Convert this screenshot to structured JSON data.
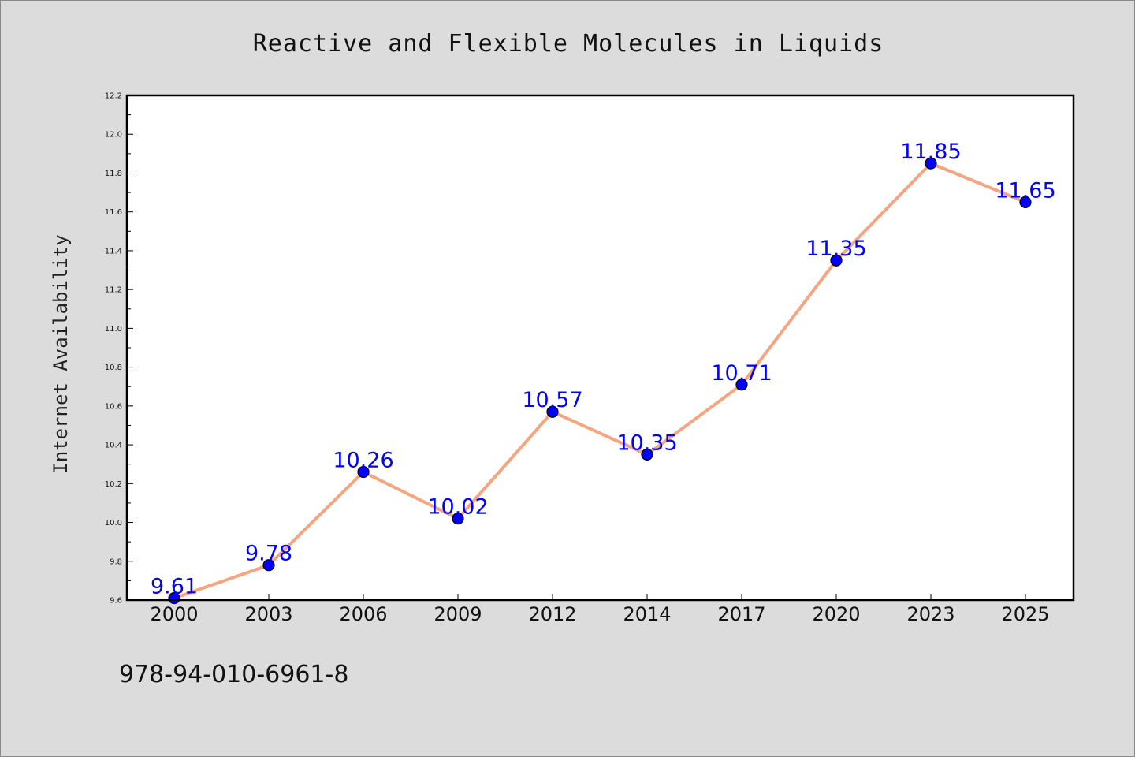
{
  "chart_data": {
    "type": "line",
    "title": "Reactive and Flexible Molecules in Liquids",
    "xlabel": "",
    "ylabel": "Internet Availability",
    "categories": [
      "2000",
      "2003",
      "2006",
      "2009",
      "2012",
      "2014",
      "2017",
      "2020",
      "2023",
      "2025"
    ],
    "series": [
      {
        "values": [
          9.61,
          9.78,
          10.26,
          10.02,
          10.57,
          10.35,
          10.71,
          11.35,
          11.85,
          11.65
        ],
        "data_labels": [
          "9.61",
          "9.78",
          "10.26",
          "10.02",
          "10.57",
          "10.35",
          "10.71",
          "11.35",
          "11.85",
          "11.65"
        ]
      }
    ],
    "ylim": [
      9.6,
      12.2
    ],
    "yticks": [
      "9.6",
      "9.8",
      "10.0",
      "10.2",
      "10.4",
      "10.6",
      "10.8",
      "11.0",
      "11.2",
      "11.4",
      "11.6",
      "11.8",
      "12.0",
      "12.2"
    ],
    "grid": false,
    "legend": "none",
    "colors": {
      "line": "#f4a582",
      "marker": "#0000ff",
      "label": "#0000ff",
      "plot_background": "#ffffff",
      "page_background": "#dcdcdc"
    }
  },
  "footer": {
    "isbn": "978-94-010-6961-8"
  }
}
